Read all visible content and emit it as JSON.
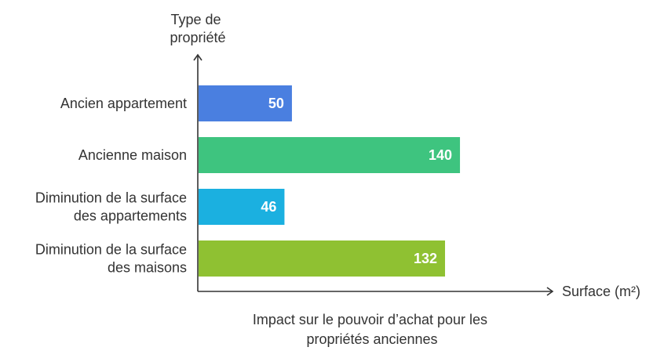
{
  "chart_data": {
    "type": "bar",
    "orientation": "horizontal",
    "ylabel": [
      "Type de",
      "propriété"
    ],
    "xlabel": "Surface (m²)",
    "caption": [
      "Impact sur le pouvoir d’achat pour les",
      "propriétés anciennes"
    ],
    "xlim": [
      0,
      190
    ],
    "grid": false,
    "categories": [
      [
        "Ancien appartement"
      ],
      [
        "Ancienne maison"
      ],
      [
        "Diminution de la surface",
        "des appartements"
      ],
      [
        "Diminution de la surface",
        "des maisons"
      ]
    ],
    "values": [
      50,
      140,
      46,
      132
    ],
    "colors": [
      "#4a7fe0",
      "#3ec47f",
      "#1bb0e0",
      "#8fc132"
    ]
  }
}
